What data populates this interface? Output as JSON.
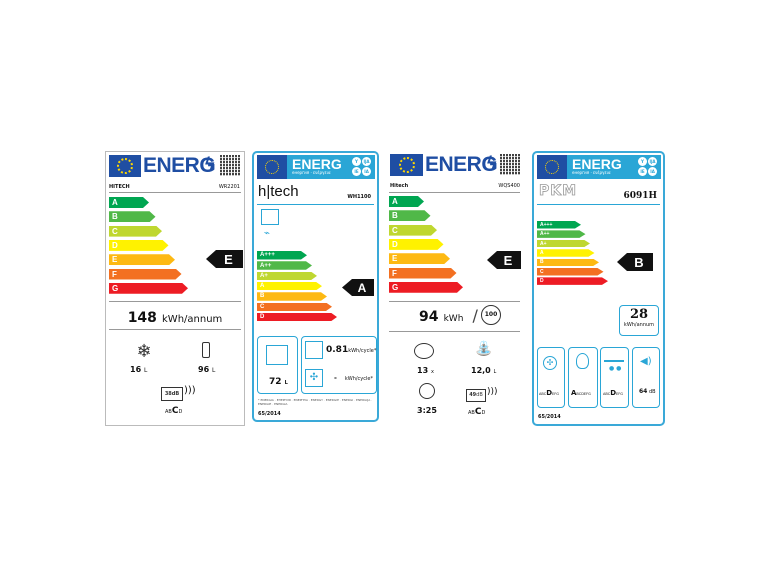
{
  "colors": {
    "eu_blue": "#1f4ea3",
    "label_blue": "#2aa6d6",
    "arrow": "#111111"
  },
  "scale_ag": [
    {
      "letter": "A",
      "color": "#00a651"
    },
    {
      "letter": "B",
      "color": "#50b848"
    },
    {
      "letter": "C",
      "color": "#bfd730"
    },
    {
      "letter": "D",
      "color": "#fff200"
    },
    {
      "letter": "E",
      "color": "#fdb913"
    },
    {
      "letter": "F",
      "color": "#f37021"
    },
    {
      "letter": "G",
      "color": "#ed1c24"
    }
  ],
  "scale_a3d": [
    {
      "letter": "A+++",
      "color": "#00a651"
    },
    {
      "letter": "A++",
      "color": "#50b848"
    },
    {
      "letter": "A+",
      "color": "#bfd730"
    },
    {
      "letter": "A",
      "color": "#fff200"
    },
    {
      "letter": "B",
      "color": "#fdb913"
    },
    {
      "letter": "C",
      "color": "#f37021"
    },
    {
      "letter": "D",
      "color": "#ed1c24"
    }
  ],
  "labels": [
    {
      "header": "ENERG",
      "brand": "HITECH",
      "model": "WR2201",
      "rating": "E",
      "consumption": "148",
      "consumption_unit": "kWh/annum",
      "freezer": "16",
      "freezer_unit": "L",
      "fridge": "96",
      "fridge_unit": "L",
      "noise": "38",
      "noise_unit": "dB",
      "noise_class": {
        "pre": "AB",
        "active": "C",
        "post": "D"
      },
      "icons": [
        "snowflake-icon",
        "fridge-icon",
        "speaker-icon",
        "qr-code-icon"
      ]
    },
    {
      "header": "ENERG",
      "subheader": "енергия · ενέργεια",
      "lang_badges": [
        "Y",
        "IJA",
        "IE",
        "IA"
      ],
      "brand": "h|tech",
      "model": "WH1100",
      "rating": "A",
      "volume": "72",
      "volume_unit": "L",
      "conventional": "0.81",
      "conventional_unit": "kWh/cycle*",
      "fan": "-",
      "fan_unit": "kWh/cycle*",
      "footnote": "* ENERGIA · ЕНЕРГИЯ · ΕΝΕΡΓΕΙΑ · ENERGY · ENERGIE · ENERGI · ENERGIJA · ENERGIE · ENERGIA",
      "regulation": "65/2014",
      "icons": [
        "oven-icon",
        "plug-icon",
        "oven-conventional-icon",
        "fan-oven-icon"
      ]
    },
    {
      "header": "ENERG",
      "brand": "Hitech",
      "model": "WQS400",
      "rating": "E",
      "consumption": "94",
      "consumption_unit": "kWh",
      "per_cycles": "100",
      "place_settings": "13",
      "place_unit": "x",
      "water": "12,0",
      "water_unit": "L",
      "duration": "3:25",
      "noise": "49",
      "noise_unit": "dB",
      "noise_class": {
        "pre": "AB",
        "active": "C",
        "post": "D"
      },
      "icons": [
        "plates-icon",
        "water-tap-icon",
        "clock-icon",
        "speaker-icon"
      ]
    },
    {
      "header": "ENERG",
      "subheader": "енергия · ενέργεια",
      "lang_badges": [
        "Y",
        "IJA",
        "IE",
        "IA"
      ],
      "brand": "PKM",
      "model": "6091H",
      "rating": "B",
      "consumption": "28",
      "consumption_unit": "kWh/annum",
      "fluid_class": {
        "pre": "ABC",
        "active": "D",
        "post": "EFG"
      },
      "light_class": {
        "pre": "",
        "active": "A",
        "post": "BCDEFG"
      },
      "grease_class": {
        "pre": "ABC",
        "active": "D",
        "post": "EFG"
      },
      "noise": "64",
      "noise_unit": "dB",
      "regulation": "65/2014",
      "icons": [
        "fan-icon",
        "bulb-icon",
        "grease-filter-icon",
        "sound-icon"
      ]
    }
  ]
}
